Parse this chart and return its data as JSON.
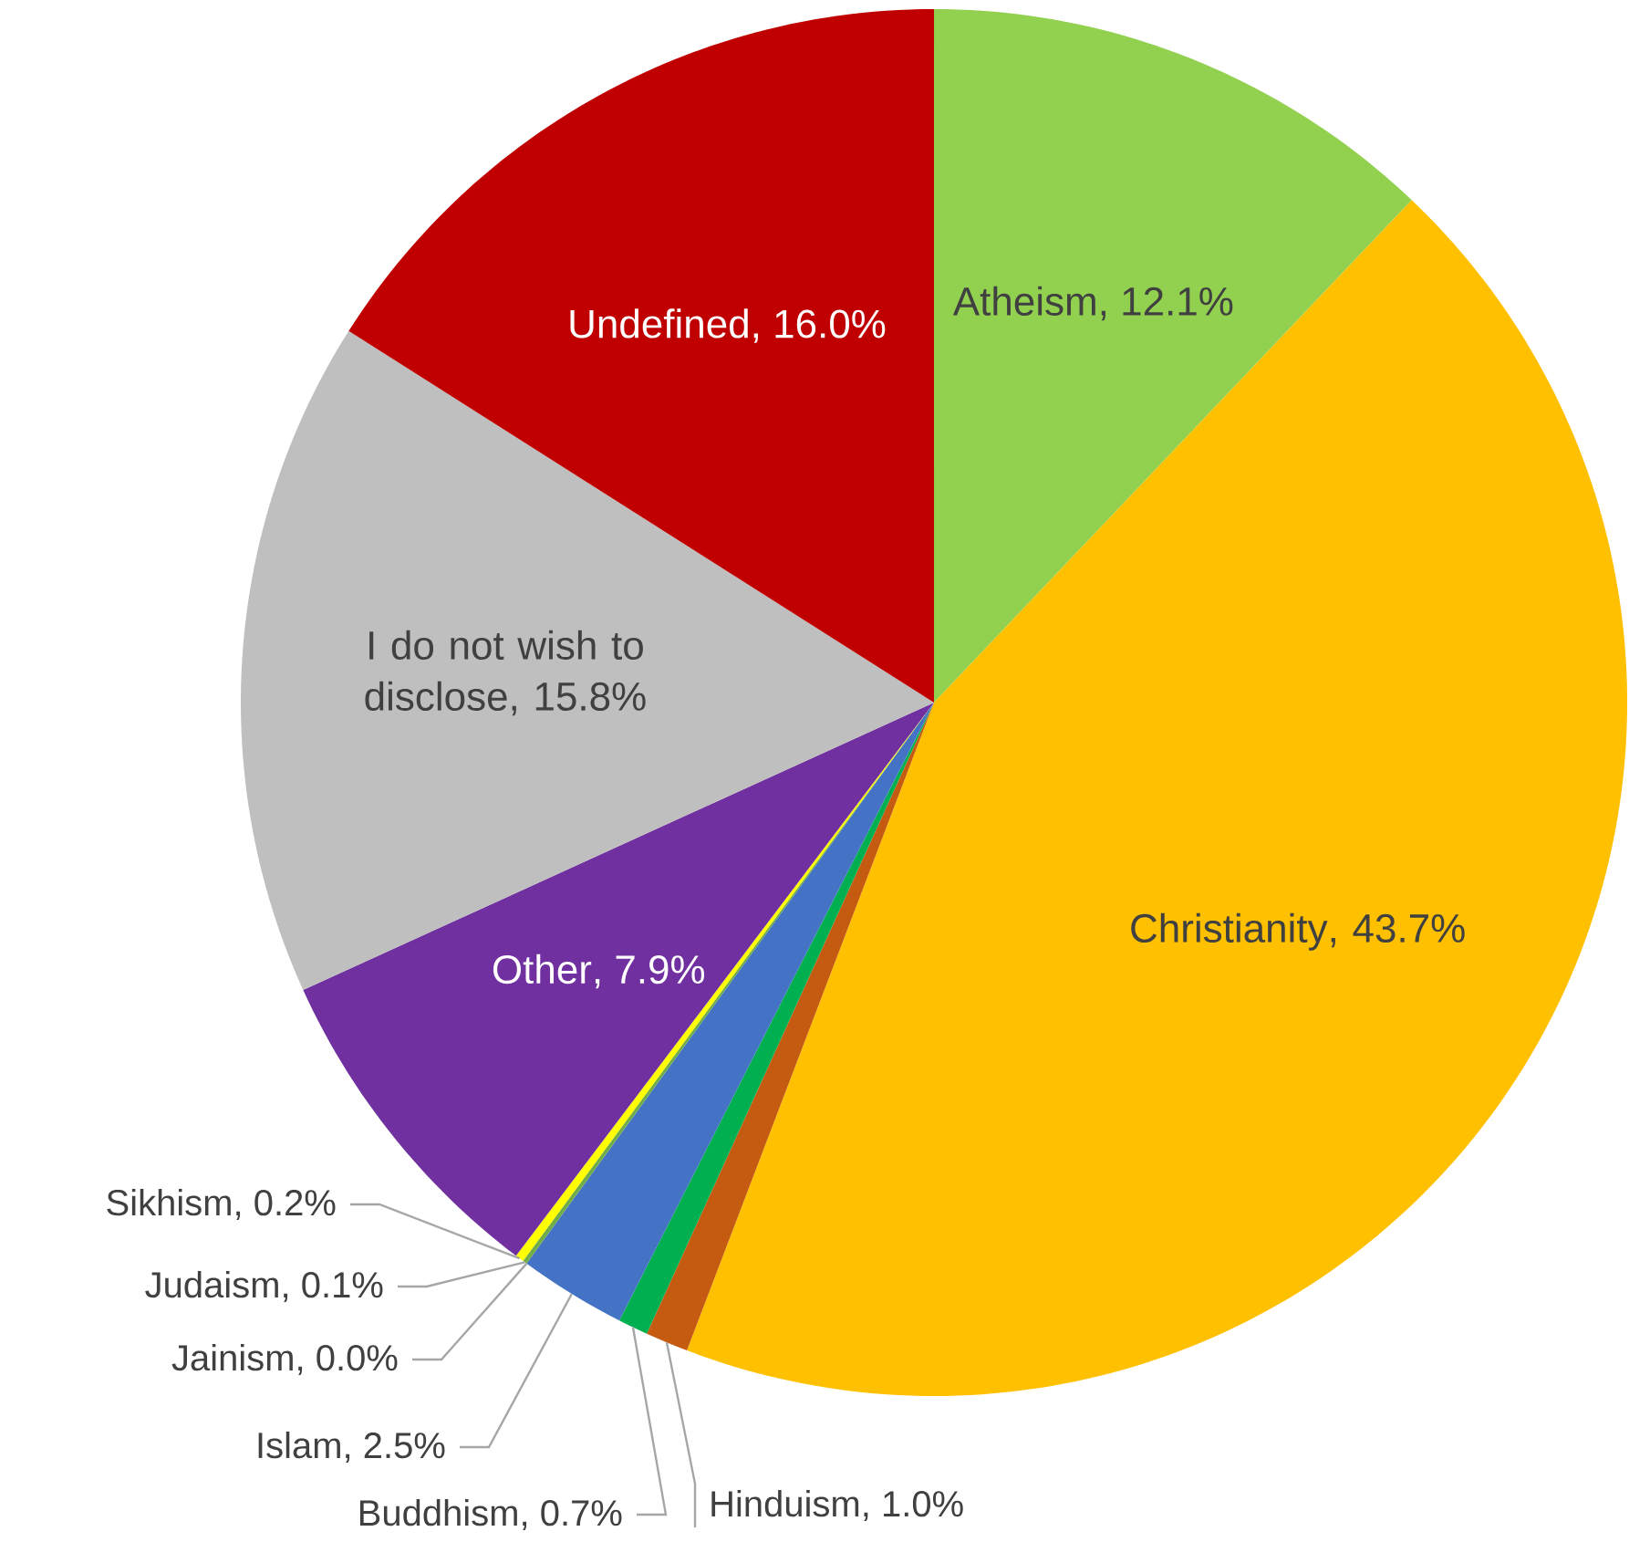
{
  "chart_data": {
    "type": "pie",
    "categories": [
      "Atheism",
      "Christianity",
      "Hinduism",
      "Buddhism",
      "Islam",
      "Jainism",
      "Judaism",
      "Sikhism",
      "Other",
      "I do not wish to disclose",
      "Undefined"
    ],
    "values": [
      12.1,
      43.7,
      1.0,
      0.7,
      2.5,
      0.0,
      0.1,
      0.2,
      7.9,
      15.8,
      16.0
    ],
    "value_labels": [
      ", 12.1%",
      ", 43.7%",
      ", 1.0%",
      ", 0.7%",
      ", 2.5%",
      ", 0.0%",
      ", 0.1%",
      ", 0.2%",
      ", 7.9%",
      ", 15.8%",
      ", 16.0%"
    ],
    "colors": [
      "#92d050",
      "#ffc000",
      "#c55a11",
      "#00b050",
      "#4472c4",
      "#002060",
      "#70ad47",
      "#ffff00",
      "#7030a0",
      "#bfbfbf",
      "#c00000"
    ]
  }
}
